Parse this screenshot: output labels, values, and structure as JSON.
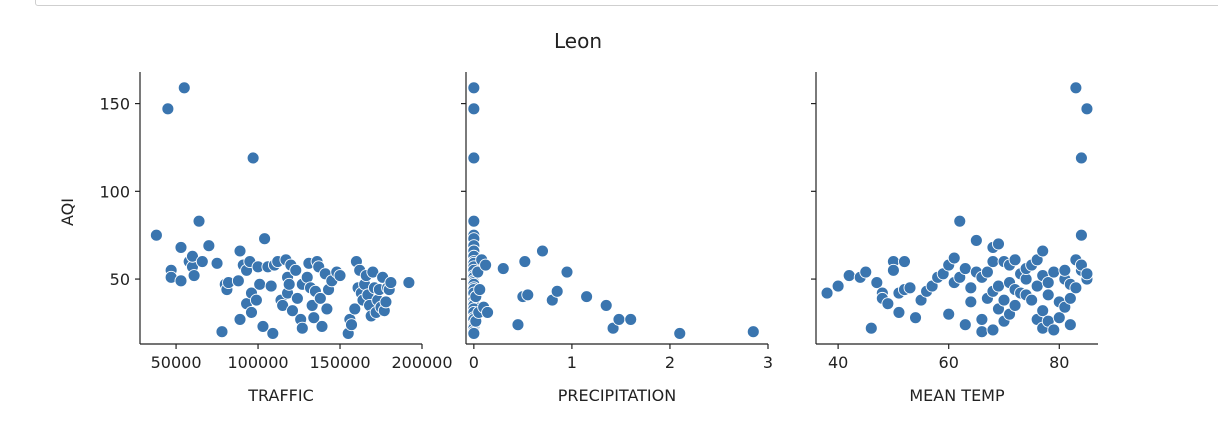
{
  "chart_data": {
    "type": "scatter",
    "title": "Leon",
    "ylabel": "AQI",
    "ylim": [
      13,
      168
    ],
    "yticks": [
      50,
      100,
      150
    ],
    "point_color": "#3a75af",
    "point_edge": "#ffffff",
    "subplots": [
      {
        "xlabel": "TRAFFIC",
        "xlim": [
          28000,
          200000
        ],
        "xticks": [
          50000,
          100000,
          150000,
          200000
        ],
        "points": [
          [
            38000,
            75
          ],
          [
            45000,
            147
          ],
          [
            47000,
            55
          ],
          [
            47000,
            51
          ],
          [
            53000,
            68
          ],
          [
            53000,
            49
          ],
          [
            55000,
            159
          ],
          [
            58000,
            60
          ],
          [
            60000,
            57
          ],
          [
            60000,
            63
          ],
          [
            61000,
            52
          ],
          [
            64000,
            83
          ],
          [
            66000,
            60
          ],
          [
            70000,
            69
          ],
          [
            75000,
            59
          ],
          [
            78000,
            20
          ],
          [
            80000,
            47
          ],
          [
            81000,
            44
          ],
          [
            82000,
            48
          ],
          [
            88000,
            49
          ],
          [
            89000,
            66
          ],
          [
            89000,
            27
          ],
          [
            91000,
            58
          ],
          [
            93000,
            36
          ],
          [
            93000,
            55
          ],
          [
            95000,
            60
          ],
          [
            96000,
            42
          ],
          [
            96000,
            31
          ],
          [
            97000,
            119
          ],
          [
            99000,
            38
          ],
          [
            100000,
            57
          ],
          [
            101000,
            47
          ],
          [
            103000,
            23
          ],
          [
            104000,
            73
          ],
          [
            106000,
            57
          ],
          [
            108000,
            46
          ],
          [
            109000,
            19
          ],
          [
            110000,
            58
          ],
          [
            112000,
            60
          ],
          [
            114000,
            38
          ],
          [
            115000,
            35
          ],
          [
            117000,
            61
          ],
          [
            118000,
            42
          ],
          [
            118000,
            51
          ],
          [
            119000,
            47
          ],
          [
            120000,
            58
          ],
          [
            121000,
            32
          ],
          [
            123000,
            55
          ],
          [
            124000,
            39
          ],
          [
            126000,
            27
          ],
          [
            127000,
            22
          ],
          [
            127000,
            47
          ],
          [
            130000,
            51
          ],
          [
            131000,
            59
          ],
          [
            132000,
            45
          ],
          [
            133000,
            35
          ],
          [
            134000,
            28
          ],
          [
            135000,
            43
          ],
          [
            136000,
            60
          ],
          [
            137000,
            57
          ],
          [
            138000,
            39
          ],
          [
            139000,
            23
          ],
          [
            141000,
            53
          ],
          [
            142000,
            33
          ],
          [
            143000,
            44
          ],
          [
            145000,
            49
          ],
          [
            148000,
            54
          ],
          [
            150000,
            52
          ],
          [
            155000,
            19
          ],
          [
            156000,
            27
          ],
          [
            157000,
            24
          ],
          [
            159000,
            33
          ],
          [
            160000,
            60
          ],
          [
            161000,
            45
          ],
          [
            162000,
            55
          ],
          [
            163000,
            42
          ],
          [
            164000,
            38
          ],
          [
            165000,
            47
          ],
          [
            166000,
            52
          ],
          [
            167000,
            41
          ],
          [
            168000,
            35
          ],
          [
            169000,
            29
          ],
          [
            170000,
            54
          ],
          [
            171000,
            45
          ],
          [
            172000,
            31
          ],
          [
            173000,
            38
          ],
          [
            174000,
            44
          ],
          [
            175000,
            34
          ],
          [
            176000,
            51
          ],
          [
            177000,
            32
          ],
          [
            178000,
            37
          ],
          [
            179000,
            45
          ],
          [
            180000,
            44
          ],
          [
            181000,
            48
          ],
          [
            192000,
            48
          ]
        ]
      },
      {
        "xlabel": "PRECIPITATION",
        "xlim": [
          -0.08,
          3.0
        ],
        "xticks": [
          0,
          1,
          2,
          3
        ],
        "points": [
          [
            0,
            159
          ],
          [
            0,
            147
          ],
          [
            0,
            119
          ],
          [
            0,
            83
          ],
          [
            0,
            75
          ],
          [
            0,
            73
          ],
          [
            0,
            69
          ],
          [
            0,
            66
          ],
          [
            0,
            63
          ],
          [
            0,
            60
          ],
          [
            0,
            59
          ],
          [
            0,
            57
          ],
          [
            0,
            55
          ],
          [
            0,
            52
          ],
          [
            0,
            51
          ],
          [
            0,
            49
          ],
          [
            0,
            48
          ],
          [
            0,
            47
          ],
          [
            0,
            45
          ],
          [
            0,
            44
          ],
          [
            0,
            42
          ],
          [
            0,
            38
          ],
          [
            0,
            36
          ],
          [
            0,
            35
          ],
          [
            0,
            33
          ],
          [
            0,
            31
          ],
          [
            0,
            28
          ],
          [
            0,
            27
          ],
          [
            0,
            24
          ],
          [
            0,
            23
          ],
          [
            0,
            22
          ],
          [
            0,
            20
          ],
          [
            0,
            19
          ],
          [
            0.02,
            40
          ],
          [
            0.02,
            26
          ],
          [
            0.04,
            54
          ],
          [
            0.05,
            31
          ],
          [
            0.06,
            44
          ],
          [
            0.08,
            61
          ],
          [
            0.1,
            34
          ],
          [
            0.12,
            58
          ],
          [
            0.14,
            31
          ],
          [
            0.3,
            56
          ],
          [
            0.45,
            24
          ],
          [
            0.52,
            60
          ],
          [
            0.5,
            40
          ],
          [
            0.55,
            41
          ],
          [
            0.7,
            66
          ],
          [
            0.8,
            38
          ],
          [
            0.85,
            43
          ],
          [
            0.95,
            54
          ],
          [
            1.15,
            40
          ],
          [
            1.35,
            35
          ],
          [
            1.42,
            22
          ],
          [
            1.48,
            27
          ],
          [
            1.6,
            27
          ],
          [
            2.1,
            19
          ],
          [
            2.85,
            20
          ]
        ]
      },
      {
        "xlabel": "MEAN TEMP",
        "xlim": [
          36,
          87
        ],
        "xticks": [
          40,
          60,
          80
        ],
        "points": [
          [
            38,
            42
          ],
          [
            40,
            46
          ],
          [
            42,
            52
          ],
          [
            44,
            51
          ],
          [
            45,
            54
          ],
          [
            46,
            22
          ],
          [
            47,
            48
          ],
          [
            48,
            42
          ],
          [
            48,
            39
          ],
          [
            49,
            36
          ],
          [
            50,
            60
          ],
          [
            50,
            55
          ],
          [
            51,
            42
          ],
          [
            51,
            31
          ],
          [
            52,
            60
          ],
          [
            52,
            44
          ],
          [
            53,
            45
          ],
          [
            54,
            28
          ],
          [
            55,
            38
          ],
          [
            56,
            43
          ],
          [
            57,
            46
          ],
          [
            58,
            51
          ],
          [
            59,
            53
          ],
          [
            60,
            30
          ],
          [
            60,
            58
          ],
          [
            61,
            62
          ],
          [
            61,
            48
          ],
          [
            62,
            51
          ],
          [
            62,
            83
          ],
          [
            63,
            56
          ],
          [
            63,
            24
          ],
          [
            64,
            45
          ],
          [
            64,
            37
          ],
          [
            65,
            54
          ],
          [
            65,
            72
          ],
          [
            66,
            27
          ],
          [
            66,
            51
          ],
          [
            66,
            20
          ],
          [
            67,
            39
          ],
          [
            67,
            54
          ],
          [
            68,
            21
          ],
          [
            68,
            60
          ],
          [
            68,
            43
          ],
          [
            68,
            68
          ],
          [
            69,
            70
          ],
          [
            69,
            33
          ],
          [
            69,
            46
          ],
          [
            70,
            60
          ],
          [
            70,
            38
          ],
          [
            70,
            26
          ],
          [
            71,
            58
          ],
          [
            71,
            48
          ],
          [
            71,
            30
          ],
          [
            72,
            44
          ],
          [
            72,
            61
          ],
          [
            72,
            35
          ],
          [
            73,
            53
          ],
          [
            73,
            42
          ],
          [
            74,
            50
          ],
          [
            74,
            56
          ],
          [
            74,
            41
          ],
          [
            75,
            58
          ],
          [
            75,
            38
          ],
          [
            76,
            46
          ],
          [
            76,
            27
          ],
          [
            76,
            61
          ],
          [
            77,
            32
          ],
          [
            77,
            22
          ],
          [
            77,
            66
          ],
          [
            77,
            52
          ],
          [
            78,
            41
          ],
          [
            78,
            48
          ],
          [
            78,
            26
          ],
          [
            79,
            21
          ],
          [
            79,
            54
          ],
          [
            80,
            37
          ],
          [
            80,
            28
          ],
          [
            81,
            50
          ],
          [
            81,
            55
          ],
          [
            81,
            34
          ],
          [
            82,
            39
          ],
          [
            82,
            24
          ],
          [
            82,
            47
          ],
          [
            83,
            159
          ],
          [
            83,
            61
          ],
          [
            83,
            45
          ],
          [
            84,
            119
          ],
          [
            84,
            55
          ],
          [
            84,
            75
          ],
          [
            84,
            58
          ],
          [
            85,
            147
          ],
          [
            85,
            50
          ],
          [
            85,
            53
          ]
        ]
      }
    ]
  }
}
